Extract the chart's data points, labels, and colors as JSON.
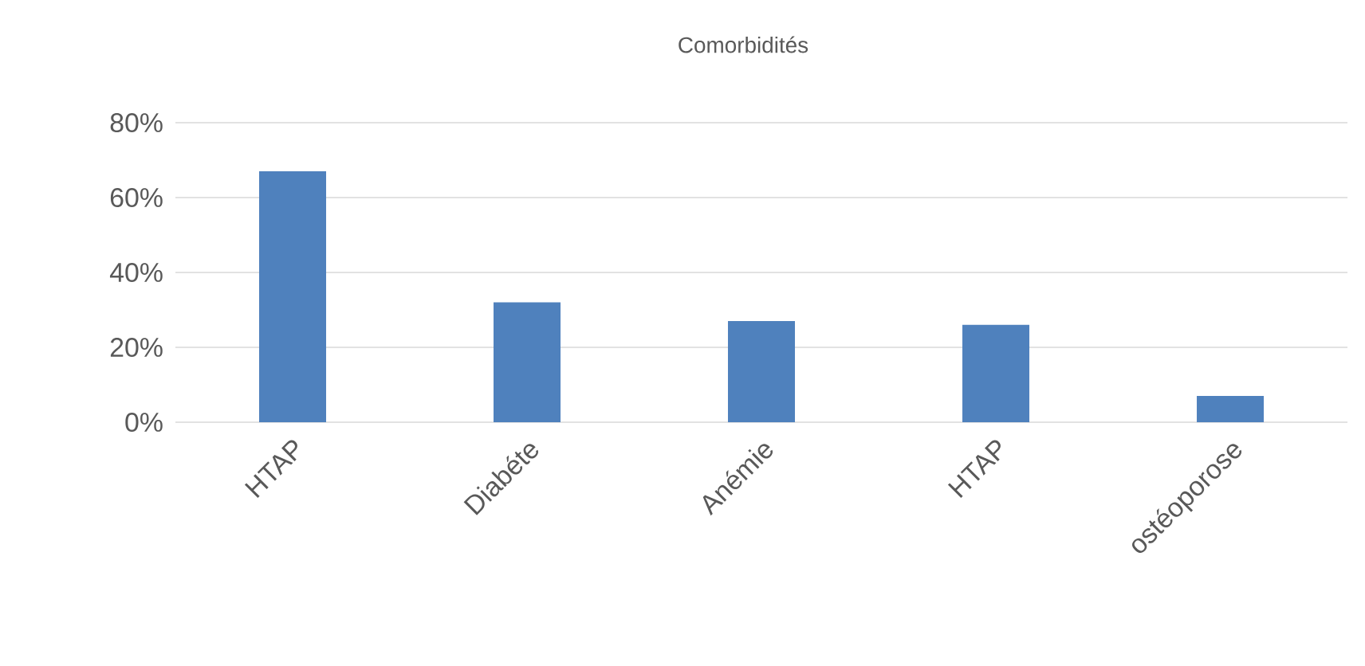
{
  "chart_data": {
    "type": "bar",
    "title": "Comorbidités",
    "categories": [
      "HTAP",
      "Diabéte",
      "Anémie",
      "HTAP",
      "ostéoporose"
    ],
    "values": [
      67,
      32,
      27,
      26,
      7
    ],
    "color": "#4f81bd",
    "ylim": [
      0,
      80
    ],
    "yticks": [
      {
        "value": 0,
        "label": "0%"
      },
      {
        "value": 20,
        "label": "20%"
      },
      {
        "value": 40,
        "label": "40%"
      },
      {
        "value": 60,
        "label": "60%"
      },
      {
        "value": 80,
        "label": "80%"
      }
    ],
    "grid": "y"
  }
}
